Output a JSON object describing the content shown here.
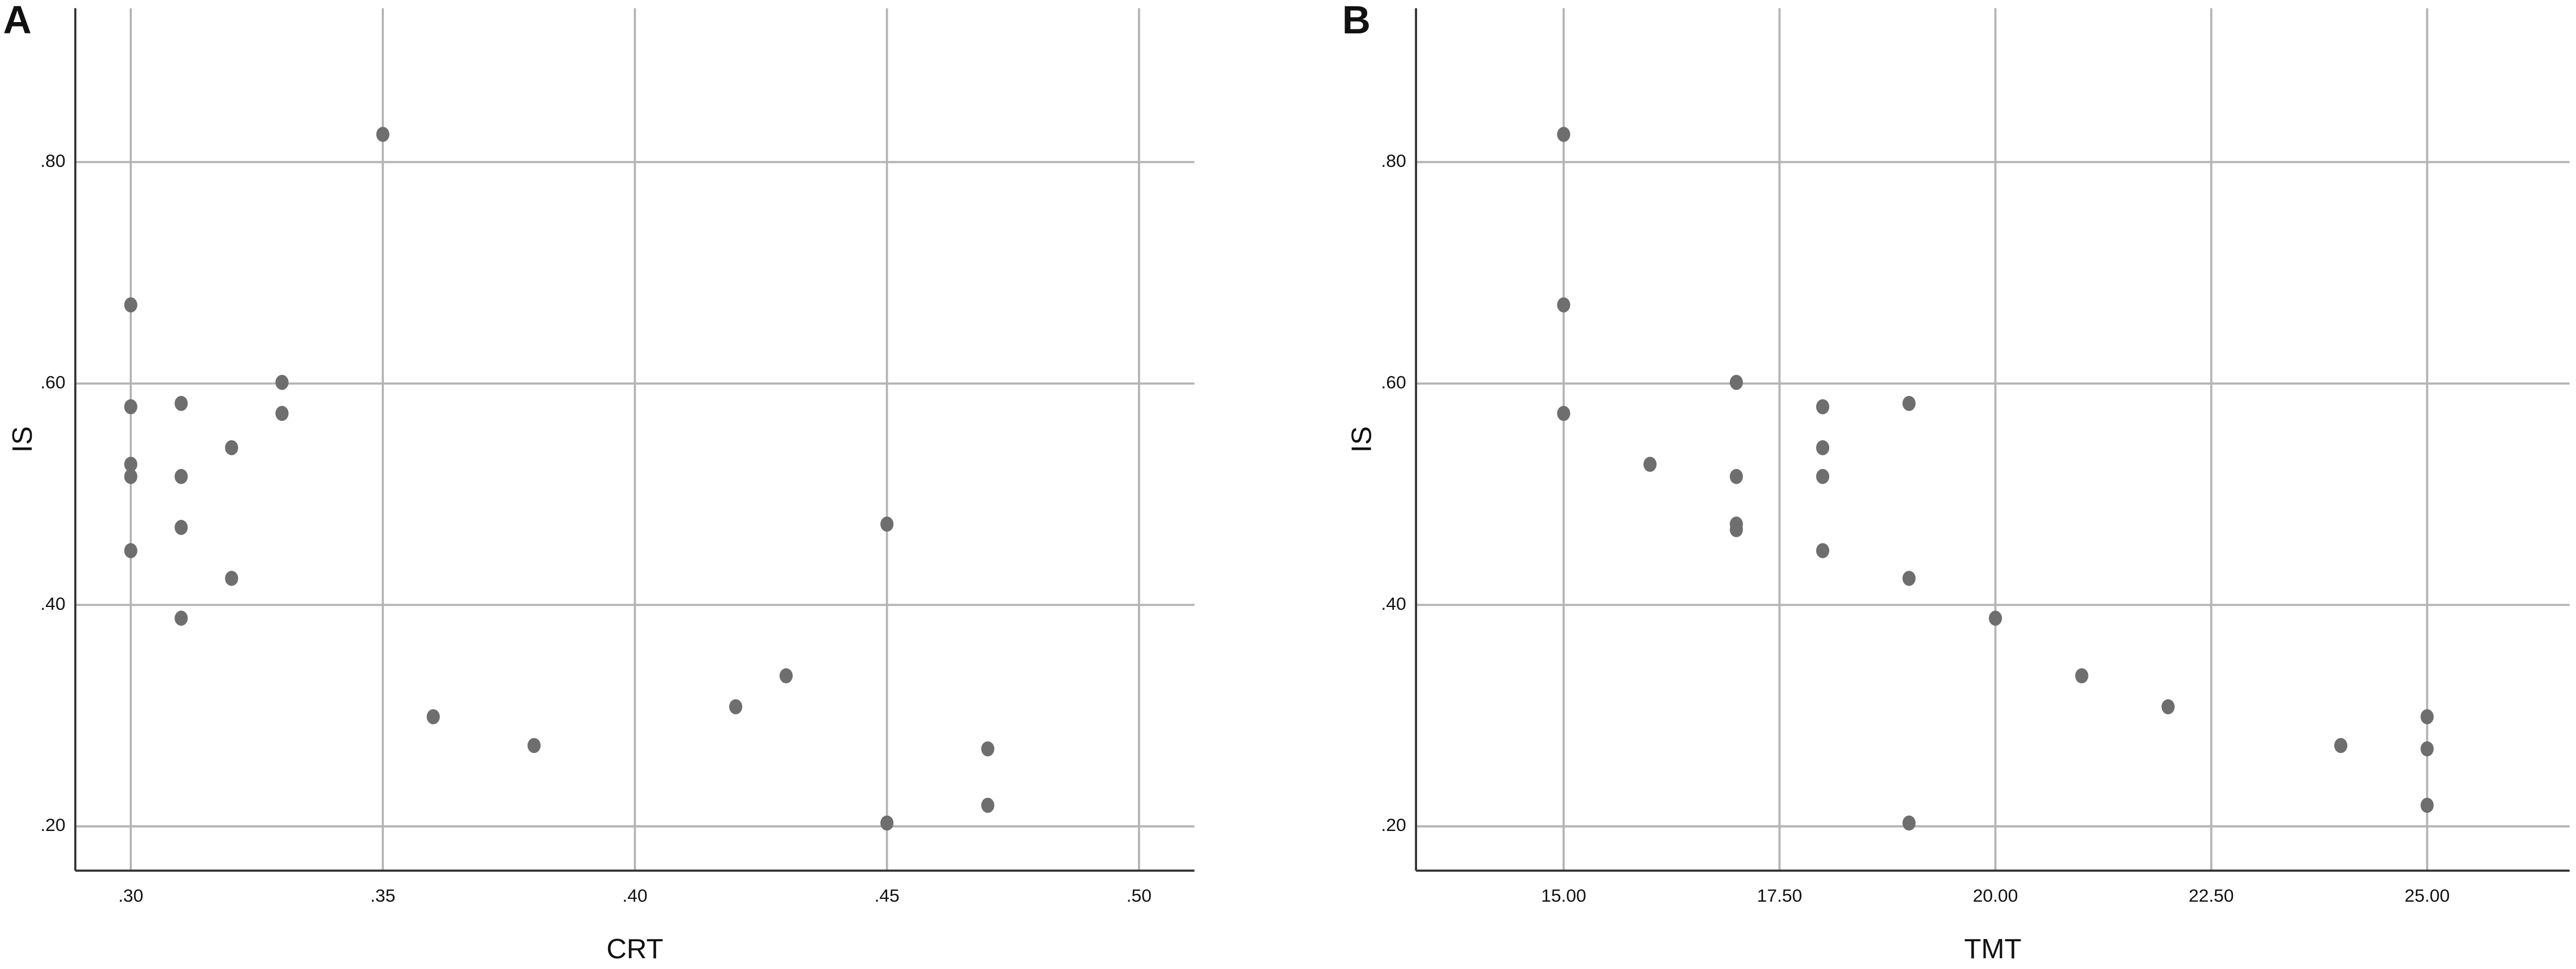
{
  "chart_data": [
    {
      "type": "scatter",
      "panel_label": "A",
      "x_label": "CRT",
      "y_label": "IS",
      "color": "#6e6e6e",
      "grid": true,
      "x": [
        0.3,
        0.3,
        0.3,
        0.3,
        0.3,
        0.31,
        0.31,
        0.31,
        0.31,
        0.32,
        0.32,
        0.33,
        0.33,
        0.35,
        0.36,
        0.38,
        0.42,
        0.43,
        0.45,
        0.45,
        0.47,
        0.47
      ],
      "values": [
        0.671,
        0.579,
        0.527,
        0.516,
        0.449,
        0.582,
        0.516,
        0.47,
        0.388,
        0.542,
        0.424,
        0.601,
        0.573,
        0.825,
        0.299,
        0.273,
        0.308,
        0.336,
        0.473,
        0.203,
        0.27,
        0.219
      ],
      "xlim": [
        0.289,
        0.511
      ],
      "ylim": [
        0.16,
        0.939
      ],
      "xticks": [
        {
          "value": 0.3,
          "label": ".30"
        },
        {
          "value": 0.35,
          "label": ".35"
        },
        {
          "value": 0.4,
          "label": ".40"
        },
        {
          "value": 0.45,
          "label": ".45"
        },
        {
          "value": 0.5,
          "label": ".50"
        }
      ],
      "yticks": [
        {
          "value": 0.2,
          "label": ".20"
        },
        {
          "value": 0.4,
          "label": ".40"
        },
        {
          "value": 0.6,
          "label": ".60"
        },
        {
          "value": 0.8,
          "label": ".80"
        }
      ]
    },
    {
      "type": "scatter",
      "panel_label": "B",
      "x_label": "TMT",
      "y_label": "IS",
      "color": "#6e6e6e",
      "grid": true,
      "x": [
        15,
        15,
        15,
        16,
        17,
        17,
        17,
        17,
        18,
        18,
        18,
        18,
        19,
        19,
        19,
        20,
        21,
        22,
        24,
        25,
        25,
        25
      ],
      "values": [
        0.825,
        0.671,
        0.573,
        0.527,
        0.601,
        0.516,
        0.473,
        0.468,
        0.579,
        0.542,
        0.516,
        0.449,
        0.582,
        0.424,
        0.203,
        0.388,
        0.336,
        0.308,
        0.273,
        0.299,
        0.27,
        0.219
      ],
      "xlim": [
        13.29,
        26.65
      ],
      "ylim": [
        0.16,
        0.939
      ],
      "xticks": [
        {
          "value": 15,
          "label": "15.00"
        },
        {
          "value": 17.5,
          "label": "17.50"
        },
        {
          "value": 20,
          "label": "20.00"
        },
        {
          "value": 22.5,
          "label": "22.50"
        },
        {
          "value": 25,
          "label": "25.00"
        }
      ],
      "yticks": [
        {
          "value": 0.2,
          "label": ".20"
        },
        {
          "value": 0.4,
          "label": ".40"
        },
        {
          "value": 0.6,
          "label": ".60"
        },
        {
          "value": 0.8,
          "label": ".80"
        }
      ]
    }
  ]
}
